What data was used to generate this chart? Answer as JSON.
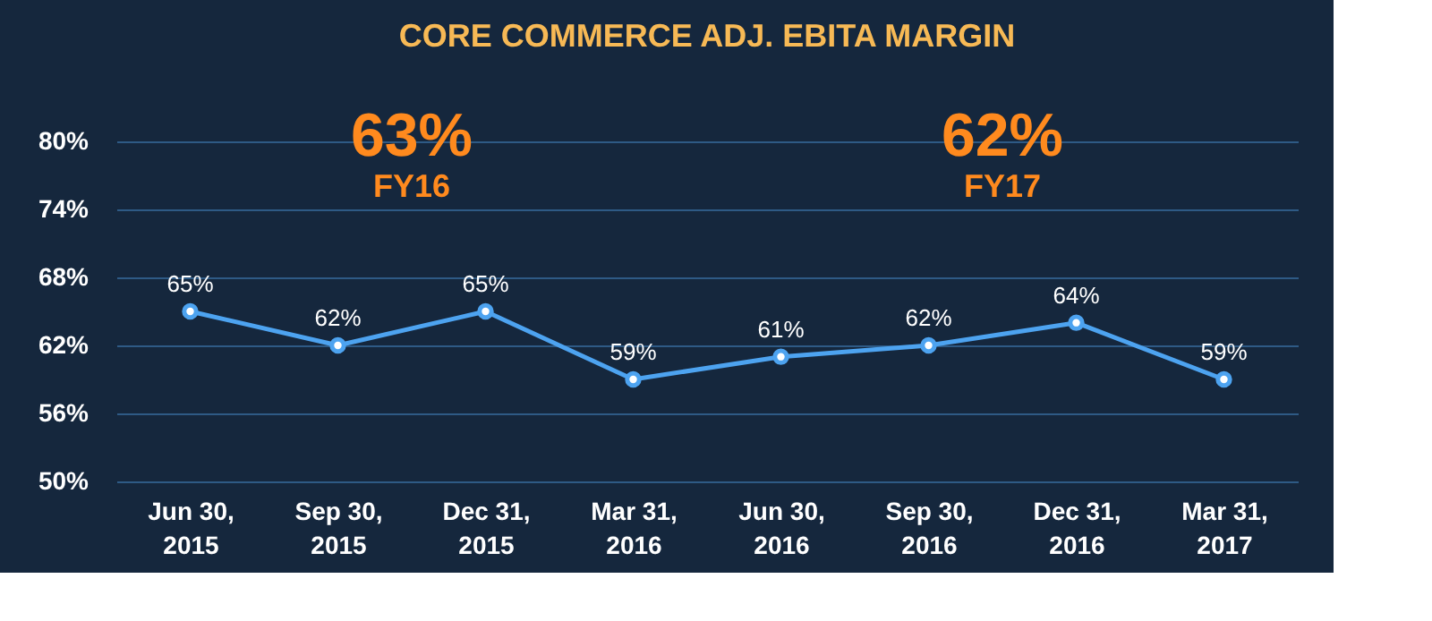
{
  "chart_data": {
    "type": "line",
    "title": "CORE COMMERCE ADJ. EBITA MARGIN",
    "categories": [
      "Jun 30, 2015",
      "Sep 30, 2015",
      "Dec 31, 2015",
      "Mar 31, 2016",
      "Jun 30, 2016",
      "Sep 30, 2016",
      "Dec 31, 2016",
      "Mar 31, 2017"
    ],
    "series": [
      {
        "color": "#4da3f0",
        "values": [
          65,
          62,
          65,
          59,
          61,
          62,
          64,
          59
        ],
        "value_labels": [
          "65%",
          "62%",
          "65%",
          "59%",
          "61%",
          "62%",
          "64%",
          "59%"
        ]
      }
    ],
    "ylim": [
      50,
      80
    ],
    "yticks": [
      {
        "value": 50,
        "label": "50%"
      },
      {
        "value": 56,
        "label": "56%"
      },
      {
        "value": 62,
        "label": "62%"
      },
      {
        "value": 68,
        "label": "68%"
      },
      {
        "value": 74,
        "label": "74%"
      },
      {
        "value": 80,
        "label": "80%"
      }
    ],
    "grid": "y",
    "marker": "circle",
    "line_style": "solid",
    "annotations": [
      "63%",
      "FY16",
      "62%",
      "FY17"
    ]
  }
}
